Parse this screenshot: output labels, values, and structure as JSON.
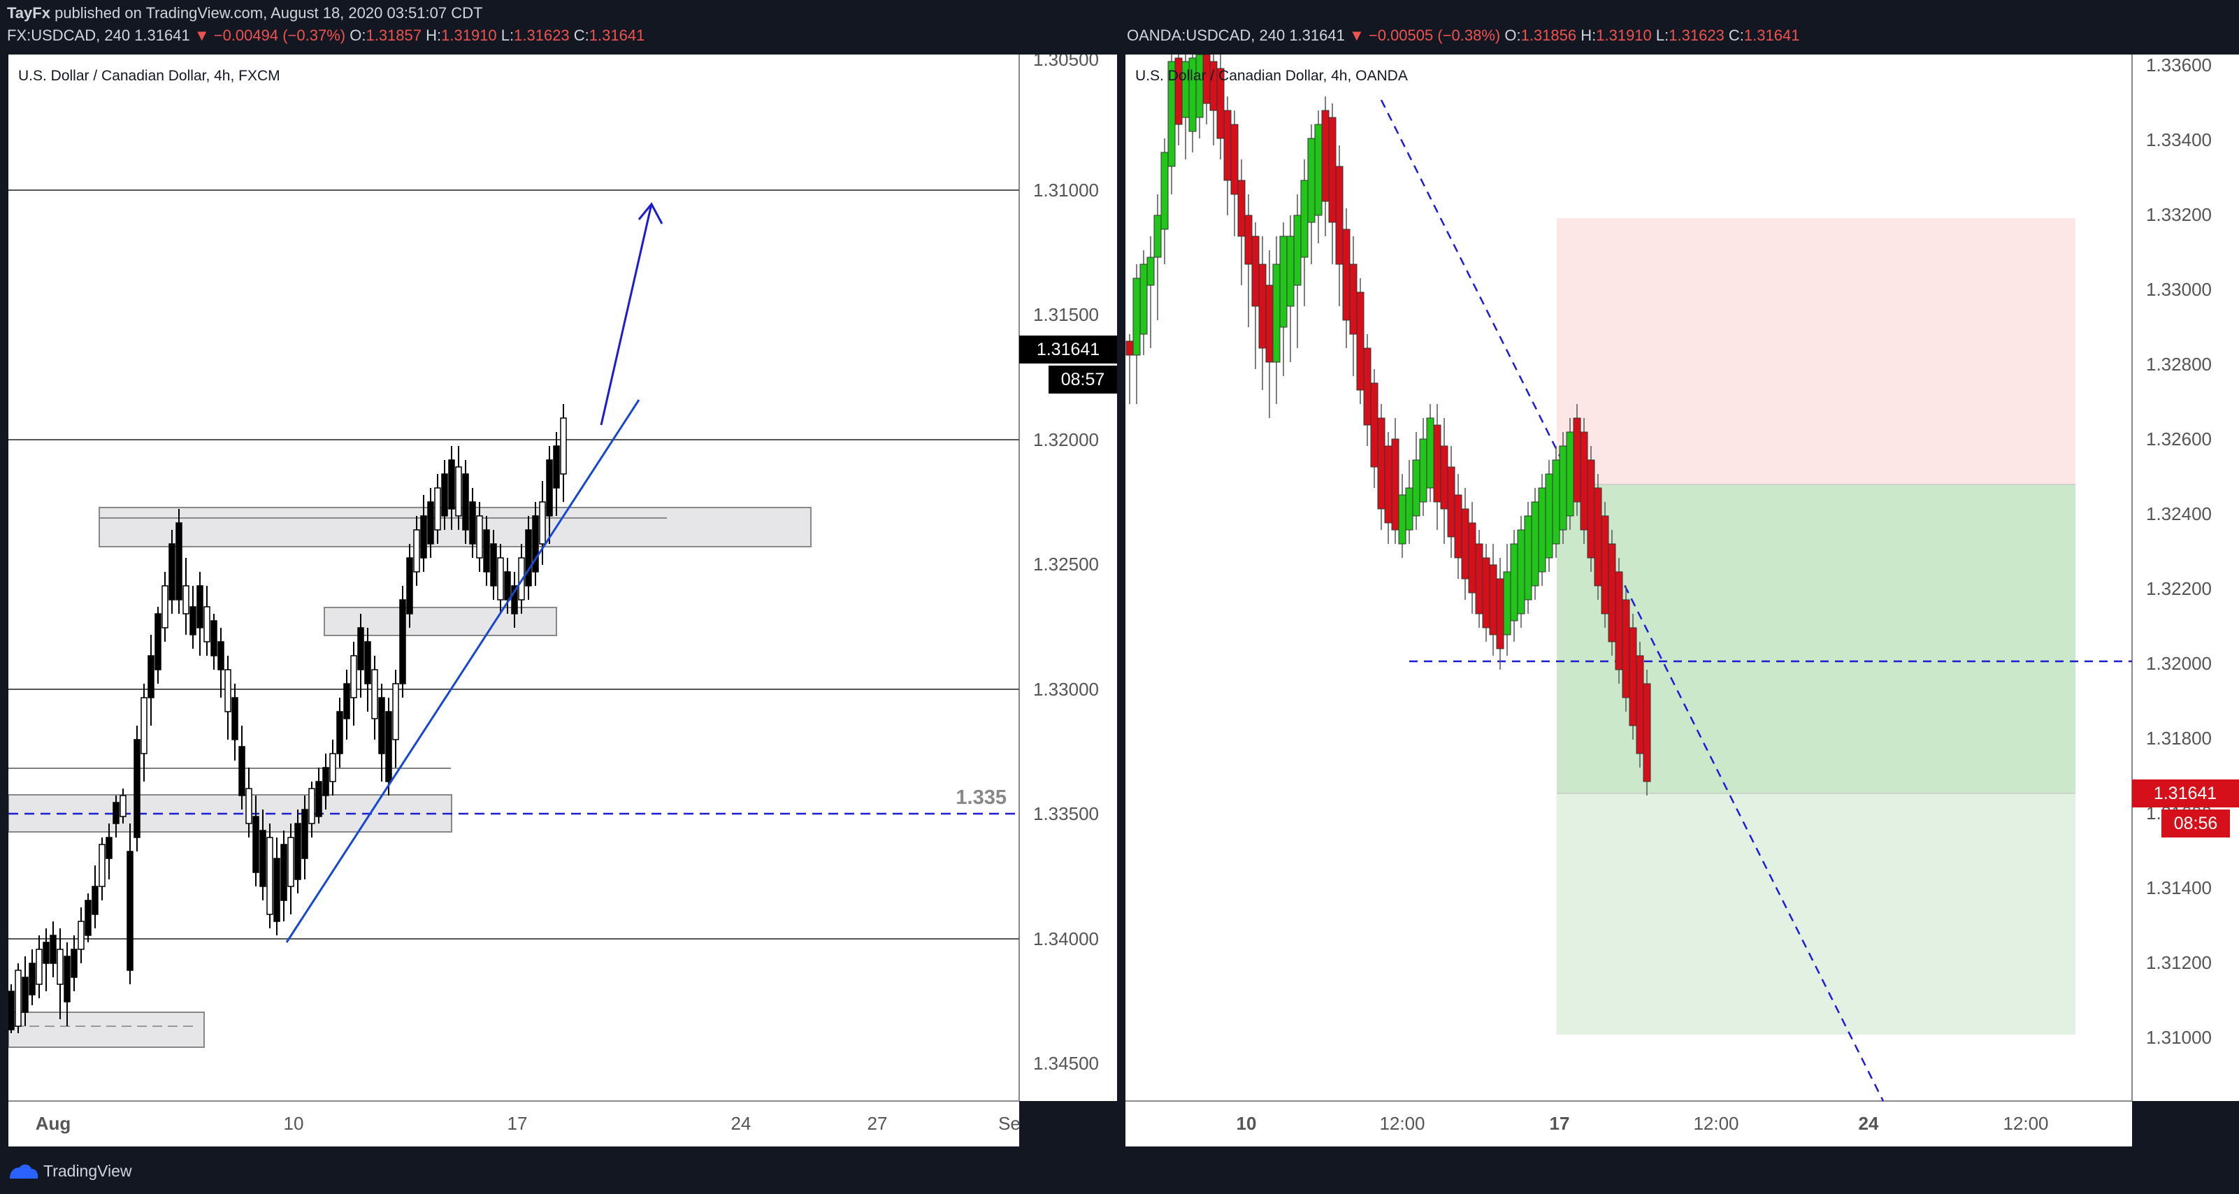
{
  "header": {
    "author": "TayFx",
    "published_text": "published on TradingView.com, August 18, 2020 03:51:07 CDT"
  },
  "left_chart": {
    "symbol_line": "FX:USDCAD, 240",
    "last": "1.31641",
    "change": "▼ −0.00494 (−0.37%)",
    "o_label": "O:",
    "o": "1.31857",
    "h_label": "H:",
    "h": "1.31910",
    "l_label": "L:",
    "l": "1.31623",
    "c_label": "C:",
    "c": "1.31641",
    "title": "U.S. Dollar / Canadian Dollar, 4h, FXCM",
    "price_axis": [
      "1.30500",
      "1.31000",
      "1.31500",
      "1.32000",
      "1.32500",
      "1.33000",
      "1.33500",
      "1.34000",
      "1.34500"
    ],
    "time_axis": [
      "Aug",
      "10",
      "17",
      "24",
      "27",
      "Se"
    ],
    "price_tag": "1.31641",
    "countdown": "08:57",
    "level_label": "1.335",
    "colors": {
      "candle": "#000000",
      "trendline": "#1848cc",
      "dashed": "#1c1cd4",
      "zone": "#e6e6e8"
    }
  },
  "right_chart": {
    "symbol_line": "OANDA:USDCAD, 240",
    "last": "1.31641",
    "change": "▼ −0.00505 (−0.38%)",
    "o_label": "O:",
    "o": "1.31856",
    "h_label": "H:",
    "h": "1.31910",
    "l_label": "L:",
    "l": "1.31623",
    "c_label": "C:",
    "c": "1.31641",
    "title": "U.S. Dollar / Canadian Dollar, 4h, OANDA",
    "price_axis": [
      "1.33600",
      "1.33400",
      "1.33200",
      "1.33000",
      "1.32800",
      "1.32600",
      "1.32400",
      "1.32200",
      "1.32000",
      "1.31800",
      "1.31600",
      "1.31400",
      "1.31200",
      "1.31000"
    ],
    "time_axis": [
      "10",
      "12:00",
      "17",
      "12:00",
      "24",
      "12:00"
    ],
    "price_tag": "1.31641",
    "countdown": "08:56",
    "colors": {
      "up": "#22c51a",
      "down": "#d6101a",
      "stop_zone": "#fde7e6",
      "target_zone": "#cce8cb",
      "target_zone_light": "#e2f1e1"
    }
  },
  "footer": {
    "brand": "TradingView"
  }
}
